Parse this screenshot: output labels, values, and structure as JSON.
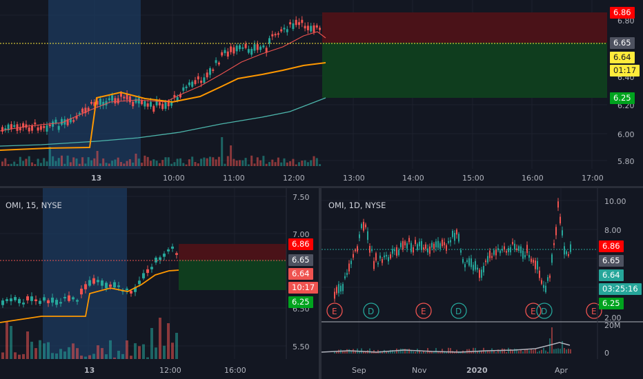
{
  "colors": {
    "background": "#131722",
    "grid": "#1e222d",
    "up": "#26a69a",
    "down": "#ef5350",
    "session_highlight": "#1c3a5e",
    "ema_fast": "#ef5350",
    "vwap": "#ff9800",
    "ema_slow": "#4db6ac",
    "stop_zone": "#4a1218",
    "target_zone": "#0f3d1e",
    "tag_red": "#ff0000",
    "tag_gray": "#4e5260",
    "tag_yellow": "#ffeb3b",
    "tag_green": "#00a31e",
    "tag_teal": "#26a69a",
    "tag_salmon": "#ef5350"
  },
  "main_chart": {
    "price_axis": [
      "6.80",
      "6.40",
      "6.20",
      "6.00",
      "5.80"
    ],
    "time_axis": [
      "13",
      "10:00",
      "11:00",
      "12:00",
      "13:00",
      "14:00",
      "15:00",
      "16:00",
      "17:00"
    ],
    "tags": {
      "stop": "6.86",
      "last": "6.65",
      "entry": "6.64",
      "countdown": "01:17",
      "target": "6.25"
    }
  },
  "bottom_left_chart": {
    "legend": "OMI, 15, NYSE",
    "price_axis": [
      "7.50",
      "7.00",
      "6.50",
      "5.50"
    ],
    "time_axis": [
      "13",
      "12:00",
      "16:00"
    ],
    "tags": {
      "stop": "6.86",
      "last": "6.65",
      "entry": "6.64",
      "countdown": "10:17",
      "target": "6.25"
    }
  },
  "bottom_right_chart": {
    "legend": "OMI, 1D, NYSE",
    "price_axis": [
      "10.00",
      "8.00",
      "2.00"
    ],
    "volume_axis": [
      "20M",
      "0"
    ],
    "time_axis": [
      "Sep",
      "Nov",
      "2020",
      "Apr"
    ],
    "event_markers": [
      "E",
      "D",
      "E",
      "D",
      "E",
      "D",
      "E"
    ],
    "tags": {
      "stop": "6.86",
      "last": "6.65",
      "entry": "6.64",
      "countdown": "03:25:16",
      "target": "6.25"
    }
  }
}
